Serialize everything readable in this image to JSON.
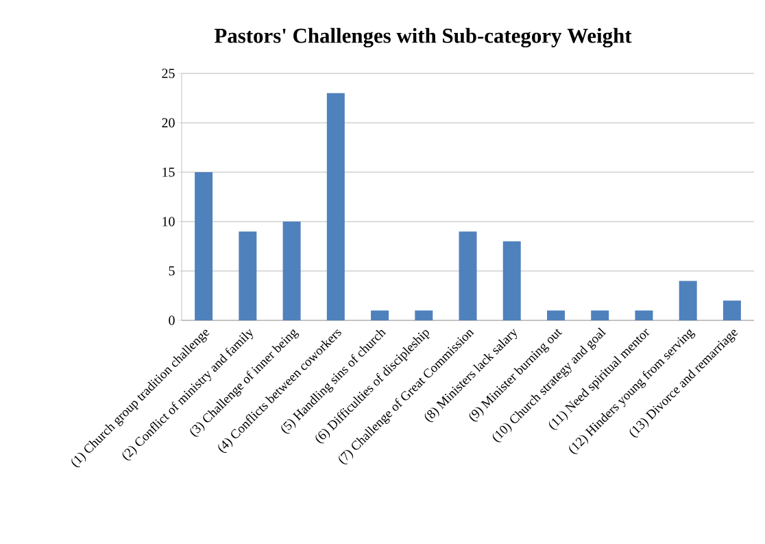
{
  "chart_data": {
    "type": "bar",
    "title": "Pastors' Challenges with Sub-category Weight",
    "categories": [
      "(1) Church group tradition challenge",
      "(2) Conflict of ministry and family",
      "(3) Challenge of inner being",
      "(4) Conflicts between coworkers",
      "(5) Handling sins of church",
      "(6) Difficulties of discipleship",
      "(7) Challenge of Great Commission",
      "(8) Ministers lack salary",
      "(9) Minister burning out",
      "(10) Church strategy and goal",
      "(11) Need spiritual mentor",
      "(12) Hinders young from serving",
      "(13) Divorce and remarriage"
    ],
    "values": [
      15,
      9,
      10,
      23,
      1,
      1,
      9,
      8,
      1,
      1,
      1,
      4,
      2
    ],
    "color": "#4f81bd",
    "ylim": [
      0,
      25
    ],
    "yticks": [
      0,
      5,
      10,
      15,
      20,
      25
    ],
    "grid": "y"
  }
}
